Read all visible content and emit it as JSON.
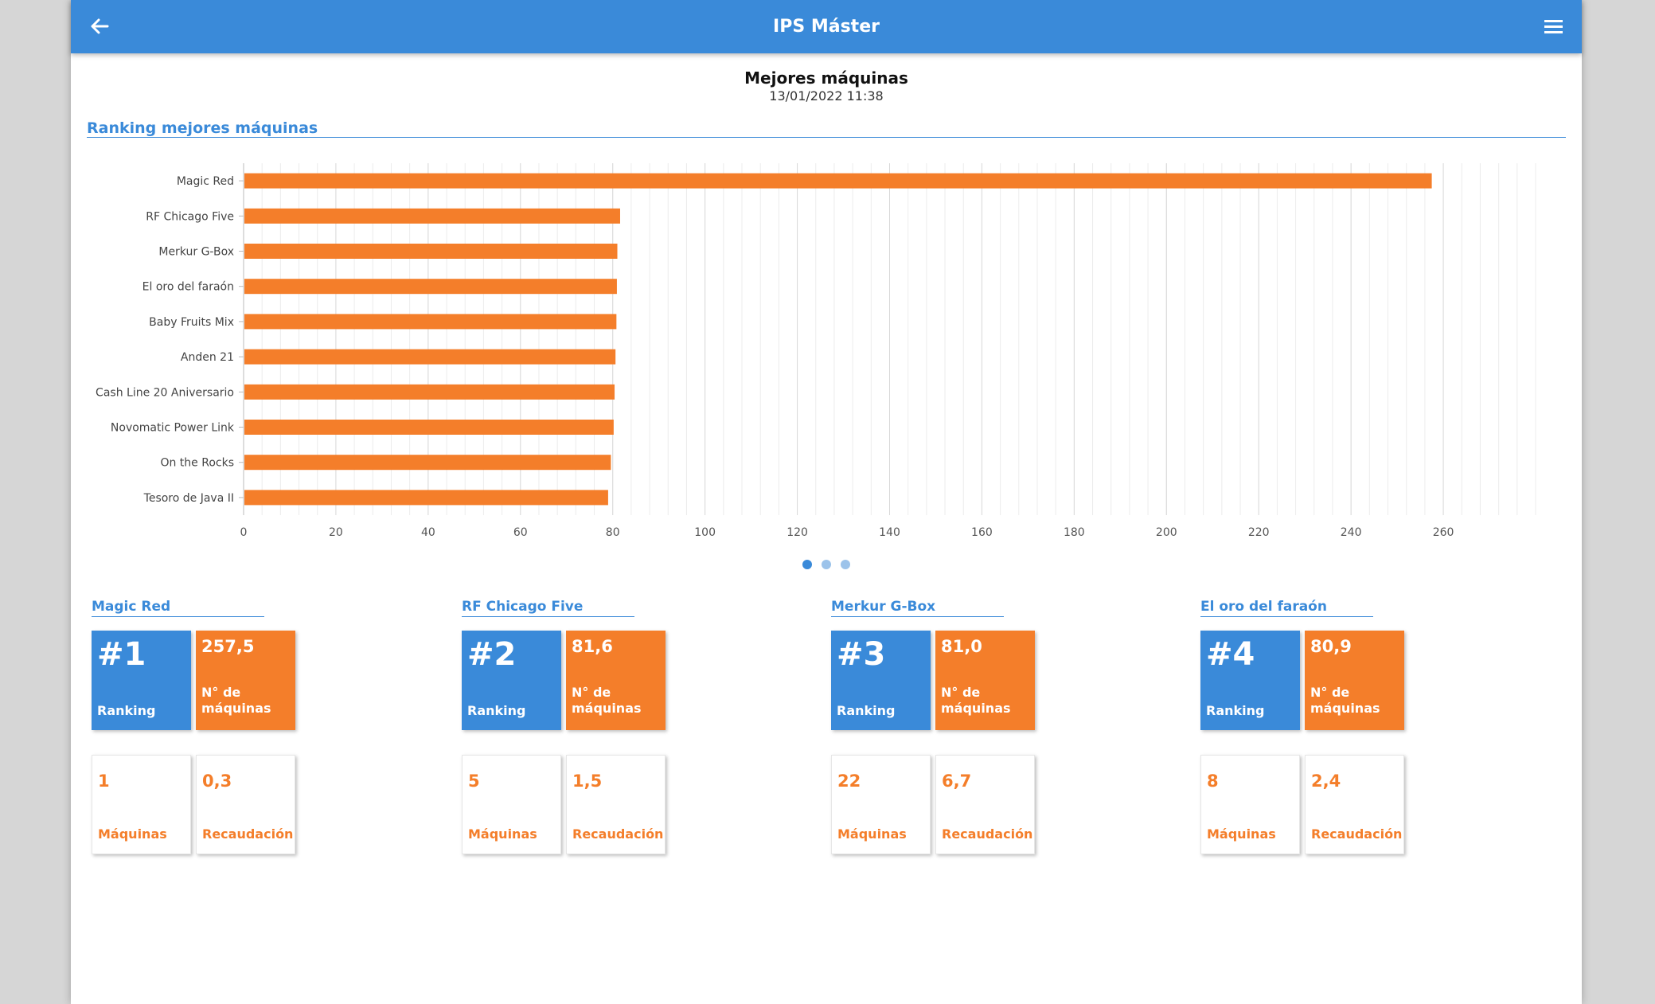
{
  "app": {
    "title": "IPS Máster"
  },
  "header": {
    "title": "Mejores máquinas",
    "date": "13/01/2022 11:38"
  },
  "section": {
    "title": "Ranking mejores máquinas"
  },
  "chart_data": {
    "type": "bar",
    "orientation": "horizontal",
    "categories": [
      "Magic Red",
      "RF Chicago Five",
      "Merkur G-Box",
      "El oro del faraón",
      "Baby Fruits Mix",
      "Anden 21",
      "Cash Line 20 Aniversario",
      "Novomatic Power Link",
      "On the Rocks",
      "Tesoro de Java II"
    ],
    "values": [
      257.5,
      81.6,
      81.0,
      80.9,
      80.8,
      80.6,
      80.4,
      80.2,
      79.6,
      79.0
    ],
    "xlim": [
      0,
      280
    ],
    "xticks": [
      0,
      20,
      40,
      60,
      80,
      100,
      120,
      140,
      160,
      180,
      200,
      220,
      240,
      260
    ],
    "grid": true,
    "color": "#f47e2a"
  },
  "pager": {
    "count": 3,
    "active": 0
  },
  "machines": [
    {
      "name": "Magic Red",
      "rank": "#1",
      "rank_label": "Ranking",
      "value": "257,5",
      "value_label": "N° de máquinas",
      "count": "1",
      "count_label": "Máquinas",
      "recaudacion": "0,3",
      "recaudacion_label": "Recaudación"
    },
    {
      "name": "RF Chicago Five",
      "rank": "#2",
      "rank_label": "Ranking",
      "value": "81,6",
      "value_label": "N° de máquinas",
      "count": "5",
      "count_label": "Máquinas",
      "recaudacion": "1,5",
      "recaudacion_label": "Recaudación"
    },
    {
      "name": "Merkur G-Box",
      "rank": "#3",
      "rank_label": "Ranking",
      "value": "81,0",
      "value_label": "N° de máquinas",
      "count": "22",
      "count_label": "Máquinas",
      "recaudacion": "6,7",
      "recaudacion_label": "Recaudación"
    },
    {
      "name": "El oro del faraón",
      "rank": "#4",
      "rank_label": "Ranking",
      "value": "80,9",
      "value_label": "N° de máquinas",
      "count": "8",
      "count_label": "Máquinas",
      "recaudacion": "2,4",
      "recaudacion_label": "Recaudación"
    }
  ],
  "colors": {
    "primary": "#3a8ad9",
    "accent": "#f47e2a"
  },
  "icons": {
    "back": "arrow-left-icon",
    "menu": "hamburger-menu-icon"
  }
}
